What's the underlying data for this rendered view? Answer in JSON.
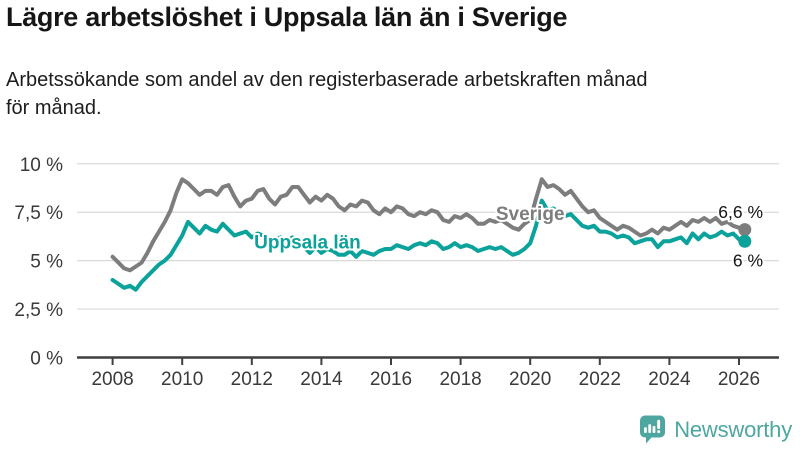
{
  "header": {
    "title": "Lägre arbetslöshet i Uppsala län än i Sverige",
    "subtitle": "Arbetssökande som andel av den registerbaserade arbetskraften månad\nför månad."
  },
  "footer": {
    "logo_text": "Newsworthy",
    "logo_color": "#4DA6A0"
  },
  "chart_data": {
    "type": "line",
    "title": "Lägre arbetslöshet i Uppsala län än i Sverige",
    "ylabel": "Arbetssökande som andel av den registerbaserade arbetskraften (%)",
    "xlabel": "",
    "grid": true,
    "legend_position": "inline-labels",
    "ylim": [
      0,
      10
    ],
    "xlim": [
      2007.0,
      2027.2
    ],
    "x_start": 2008.0,
    "x_step": 0.166667,
    "x_unit": "decimal-year (monthly data, sampled bimonthly)",
    "y_ticks": [
      {
        "v": 0,
        "label": "0 %"
      },
      {
        "v": 2.5,
        "label": "2,5 %"
      },
      {
        "v": 5,
        "label": "5 %"
      },
      {
        "v": 7.5,
        "label": "7,5 %"
      },
      {
        "v": 10,
        "label": "10 %"
      }
    ],
    "x_ticks": [
      {
        "v": 2008,
        "label": "2008"
      },
      {
        "v": 2010,
        "label": "2010"
      },
      {
        "v": 2012,
        "label": "2012"
      },
      {
        "v": 2014,
        "label": "2014"
      },
      {
        "v": 2016,
        "label": "2016"
      },
      {
        "v": 2018,
        "label": "2018"
      },
      {
        "v": 2020,
        "label": "2020"
      },
      {
        "v": 2022,
        "label": "2022"
      },
      {
        "v": 2024,
        "label": "2024"
      },
      {
        "v": 2026,
        "label": "2026"
      }
    ],
    "colors": {
      "grid": "#d9d9d9",
      "axis": "#3f3f3f",
      "tick_text": "#3a3a3a",
      "annotation_text": "#141414"
    },
    "series": [
      {
        "id": "sverige",
        "name": "Sverige",
        "color": "#7D7D7D",
        "label_pos": {
          "x": 2020.0,
          "y": 7.45
        },
        "end_label": "6,6 %",
        "end_label_y": 7.5,
        "values": [
          5.2,
          4.9,
          4.6,
          4.5,
          4.7,
          4.9,
          5.4,
          6.0,
          6.5,
          7.0,
          7.6,
          8.5,
          9.2,
          9.0,
          8.7,
          8.4,
          8.6,
          8.6,
          8.4,
          8.8,
          8.9,
          8.3,
          7.8,
          8.1,
          8.2,
          8.6,
          8.7,
          8.2,
          7.9,
          8.3,
          8.4,
          8.8,
          8.8,
          8.4,
          8.0,
          8.3,
          8.1,
          8.4,
          8.2,
          7.8,
          7.6,
          7.9,
          7.8,
          8.1,
          8.0,
          7.6,
          7.4,
          7.7,
          7.5,
          7.8,
          7.7,
          7.4,
          7.3,
          7.5,
          7.4,
          7.6,
          7.5,
          7.1,
          7.0,
          7.3,
          7.2,
          7.4,
          7.2,
          6.9,
          6.9,
          7.1,
          7.0,
          7.1,
          6.9,
          6.7,
          6.6,
          6.9,
          7.1,
          8.2,
          9.2,
          8.8,
          8.9,
          8.7,
          8.4,
          8.6,
          8.2,
          7.8,
          7.5,
          7.6,
          7.2,
          7.0,
          6.8,
          6.6,
          6.8,
          6.7,
          6.5,
          6.3,
          6.4,
          6.6,
          6.4,
          6.7,
          6.6,
          6.8,
          7.0,
          6.8,
          7.1,
          7.0,
          7.2,
          7.0,
          7.2,
          6.9,
          7.0,
          6.8,
          6.7,
          6.6
        ]
      },
      {
        "id": "uppsala-lan",
        "name": "Uppsala län",
        "color": "#0AA29A",
        "label_pos": {
          "x": 2013.6,
          "y": 6.0
        },
        "end_label": "6 %",
        "end_label_y": 5.0,
        "values": [
          4.0,
          3.8,
          3.6,
          3.7,
          3.5,
          3.9,
          4.2,
          4.5,
          4.8,
          5.0,
          5.3,
          5.8,
          6.3,
          7.0,
          6.7,
          6.4,
          6.8,
          6.6,
          6.5,
          6.9,
          6.6,
          6.3,
          6.4,
          6.5,
          6.2,
          6.4,
          6.3,
          6.0,
          6.1,
          6.2,
          6.0,
          6.2,
          5.9,
          5.7,
          5.4,
          5.7,
          5.4,
          5.6,
          5.5,
          5.3,
          5.3,
          5.5,
          5.2,
          5.5,
          5.4,
          5.3,
          5.5,
          5.6,
          5.6,
          5.8,
          5.7,
          5.6,
          5.8,
          5.9,
          5.8,
          6.0,
          5.9,
          5.6,
          5.7,
          5.9,
          5.7,
          5.8,
          5.7,
          5.5,
          5.6,
          5.7,
          5.6,
          5.7,
          5.5,
          5.3,
          5.4,
          5.6,
          5.9,
          6.8,
          8.1,
          7.6,
          7.7,
          7.5,
          7.3,
          7.4,
          7.1,
          6.8,
          6.7,
          6.8,
          6.5,
          6.5,
          6.4,
          6.2,
          6.3,
          6.2,
          5.9,
          6.0,
          6.1,
          6.1,
          5.7,
          6.0,
          6.0,
          6.1,
          6.2,
          5.9,
          6.4,
          6.1,
          6.4,
          6.2,
          6.3,
          6.5,
          6.3,
          6.4,
          6.1,
          6.0
        ]
      }
    ]
  }
}
